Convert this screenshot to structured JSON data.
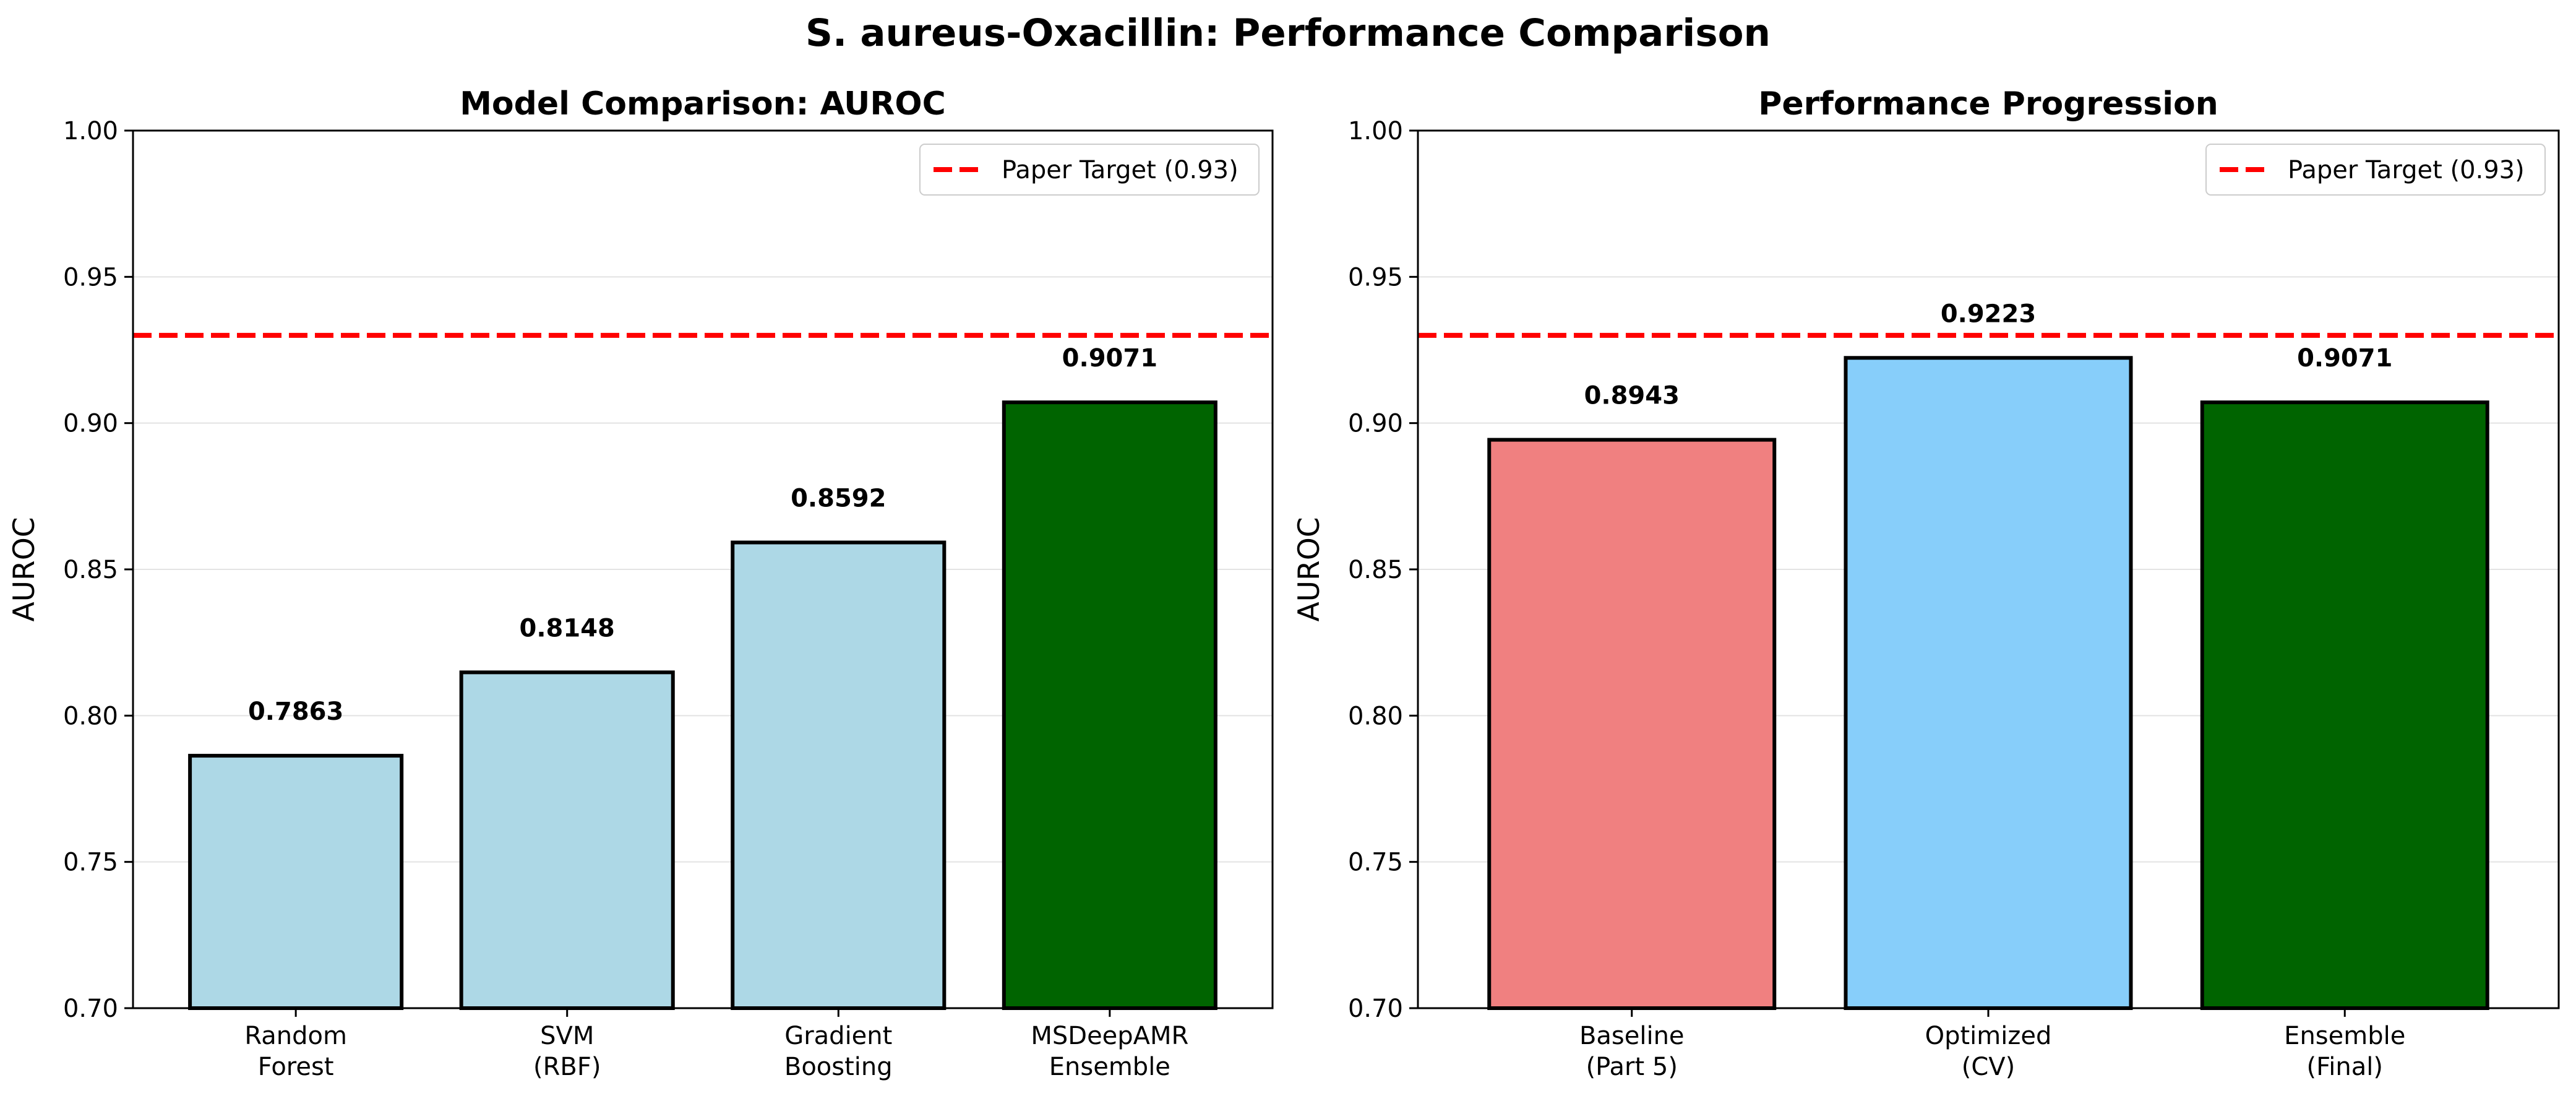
{
  "suptitle": "S. aureus-Oxacillin: Performance Comparison",
  "chart_data": [
    {
      "type": "bar",
      "title": "Model Comparison: AUROC",
      "xlabel": "",
      "ylabel": "AUROC",
      "ylim": [
        0.7,
        1.0
      ],
      "yticks": [
        "0.70",
        "0.75",
        "0.80",
        "0.85",
        "0.90",
        "0.95",
        "1.00"
      ],
      "categories": [
        "Random\nForest",
        "SVM\n(RBF)",
        "Gradient\nBoosting",
        "MSDeepAMR\nEnsemble"
      ],
      "values": [
        0.7863,
        0.8148,
        0.8592,
        0.9071
      ],
      "data_labels": [
        "0.7863",
        "0.8148",
        "0.8592",
        "0.9071"
      ],
      "colors": [
        "#add8e6",
        "#add8e6",
        "#add8e6",
        "#006400"
      ],
      "reference_line": {
        "value": 0.93,
        "label": "Paper Target (0.93)",
        "color": "#ff0000",
        "style": "dashed"
      },
      "grid": "y",
      "legend_position": "top-right"
    },
    {
      "type": "bar",
      "title": "Performance Progression",
      "xlabel": "",
      "ylabel": "AUROC",
      "ylim": [
        0.7,
        1.0
      ],
      "yticks": [
        "0.70",
        "0.75",
        "0.80",
        "0.85",
        "0.90",
        "0.95",
        "1.00"
      ],
      "categories": [
        "Baseline\n(Part 5)",
        "Optimized\n(CV)",
        "Ensemble\n(Final)"
      ],
      "values": [
        0.8943,
        0.9223,
        0.9071
      ],
      "data_labels": [
        "0.8943",
        "0.9223",
        "0.9071"
      ],
      "colors": [
        "#f08080",
        "#87cefa",
        "#006400"
      ],
      "reference_line": {
        "value": 0.93,
        "label": "Paper Target (0.93)",
        "color": "#ff0000",
        "style": "dashed"
      },
      "grid": "y",
      "legend_position": "top-right"
    }
  ]
}
